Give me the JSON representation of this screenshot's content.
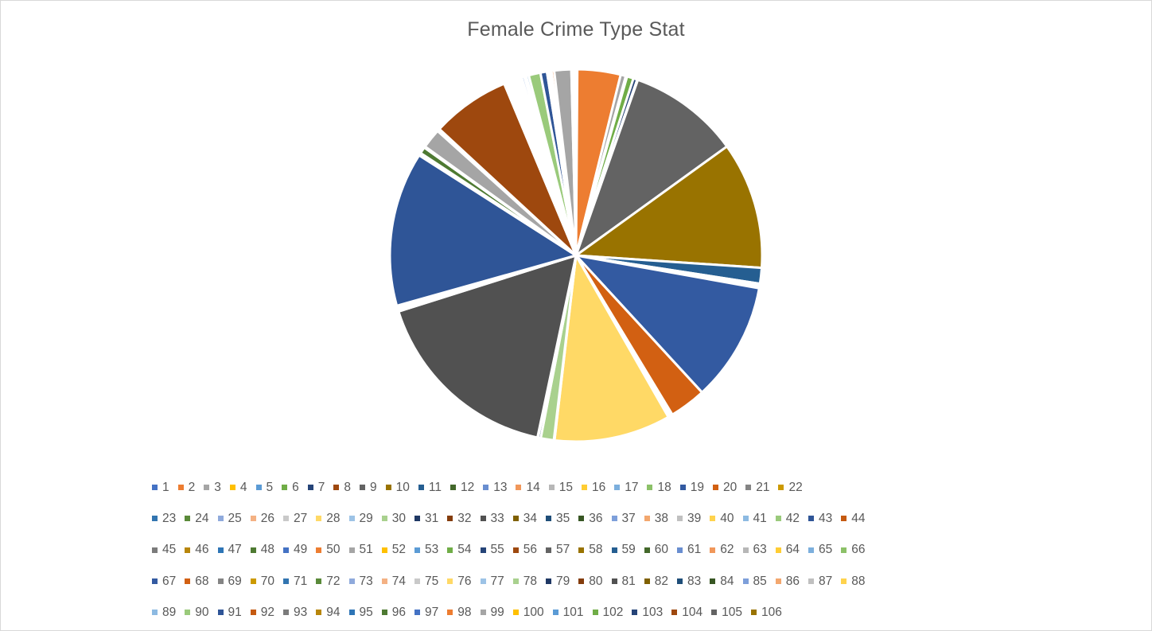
{
  "chart_data": {
    "type": "pie",
    "title": "Female Crime Type Stat",
    "legend_position": "bottom",
    "categories": [
      "1",
      "2",
      "3",
      "4",
      "5",
      "6",
      "7",
      "8",
      "9",
      "10",
      "11",
      "12",
      "13",
      "14",
      "15",
      "16",
      "17",
      "18",
      "19",
      "20",
      "21",
      "22",
      "23",
      "24",
      "25",
      "26",
      "27",
      "28",
      "29",
      "30",
      "31",
      "32",
      "33",
      "34",
      "35",
      "36",
      "37",
      "38",
      "39",
      "40",
      "41",
      "42",
      "43",
      "44",
      "45",
      "46",
      "47",
      "48",
      "49",
      "50",
      "51",
      "52",
      "53",
      "54",
      "55",
      "56",
      "57",
      "58",
      "59",
      "60",
      "61",
      "62",
      "63",
      "64",
      "65",
      "66",
      "67",
      "68",
      "69",
      "70",
      "71",
      "72",
      "73",
      "74",
      "75",
      "76",
      "77",
      "78",
      "79",
      "80",
      "81",
      "82",
      "83",
      "84",
      "85",
      "86",
      "87",
      "88",
      "89",
      "90",
      "91",
      "92",
      "93",
      "94",
      "95",
      "96",
      "97",
      "98",
      "99",
      "100",
      "101",
      "102",
      "103",
      "104",
      "105",
      "106"
    ],
    "values": [
      0.1,
      3.3,
      0.4,
      0.05,
      0.05,
      0.5,
      0.3,
      0.05,
      8.5,
      9.7,
      1.2,
      0.05,
      0.05,
      0.05,
      0.05,
      0.05,
      0.05,
      0.05,
      9.1,
      2.8,
      0.05,
      0.05,
      0.05,
      0.05,
      0.05,
      0.05,
      0.05,
      8.9,
      0.05,
      1.0,
      0.2,
      0.05,
      14.8,
      0.05,
      0.05,
      0.05,
      0.05,
      0.05,
      0.05,
      0.05,
      0.05,
      0.05,
      11.8,
      0.05,
      0.05,
      0.05,
      0.05,
      0.5,
      0.05,
      0.05,
      1.5,
      0.05,
      0.05,
      0.05,
      0.05,
      6.0,
      0.05,
      0.05,
      0.05,
      0.05,
      0.05,
      0.05,
      0.05,
      0.05,
      0.05,
      0.05,
      0.05,
      0.05,
      0.05,
      0.05,
      0.05,
      0.05,
      0.05,
      0.05,
      0.05,
      0.05,
      0.05,
      0.05,
      0.05,
      0.05,
      0.05,
      0.05,
      0.05,
      0.05,
      0.2,
      0.05,
      0.05,
      0.05,
      0.2,
      0.9,
      0.5,
      0.1,
      0.05,
      0.05,
      0.05,
      0.05,
      0.05,
      0.2,
      1.3,
      0.05,
      0.05,
      0.05,
      0.05,
      0.05,
      0.05,
      0.05
    ],
    "colors": [
      "#4472C4",
      "#ED7D31",
      "#A5A5A5",
      "#FFC000",
      "#5B9BD5",
      "#70AD47",
      "#264478",
      "#9E480E",
      "#636363",
      "#997300",
      "#255E91",
      "#43682B",
      "#698ED0",
      "#F1975A",
      "#B7B7B7",
      "#FFCD33",
      "#7CAFDD",
      "#8CC168",
      "#335AA1",
      "#D26012",
      "#848484",
      "#CC9A00",
      "#3275B0",
      "#5A8A39",
      "#8FAADC",
      "#F4B183",
      "#C9C9C9",
      "#FFD966",
      "#9DC3E6",
      "#A9D18E",
      "#1F3864",
      "#843C0C",
      "#515151",
      "#7F6000",
      "#1F4E79",
      "#375623",
      "#7D9FDA",
      "#F3A76E",
      "#C0C0C0",
      "#FFD34D",
      "#8DBAE2",
      "#9ACA7B",
      "#2F5597",
      "#C55A11",
      "#7B7B7B",
      "#B8860B",
      "#2E75B6",
      "#4E7A32"
    ],
    "slice_order": [
      1,
      2,
      3,
      4,
      5,
      6,
      7,
      8,
      9,
      10,
      11,
      12,
      13,
      14,
      15,
      16,
      17,
      18,
      19,
      20,
      21,
      22,
      23,
      24,
      25,
      26,
      27,
      28,
      29,
      30,
      31,
      32,
      33,
      34,
      35,
      36,
      37,
      38,
      39,
      40,
      41,
      42,
      43,
      44,
      45,
      46,
      47,
      48,
      49,
      50,
      51,
      52,
      53,
      54,
      55,
      56,
      57,
      58,
      59,
      60,
      61,
      62,
      63,
      64,
      65,
      66,
      67,
      68,
      69,
      70,
      71,
      72,
      73,
      74,
      75,
      76,
      77,
      78,
      79,
      80,
      81,
      82,
      83,
      84,
      85,
      86,
      87,
      88,
      89,
      90,
      91,
      92,
      93,
      94,
      95,
      96,
      97,
      98,
      99,
      100,
      101,
      102,
      103,
      104,
      105,
      106
    ]
  }
}
